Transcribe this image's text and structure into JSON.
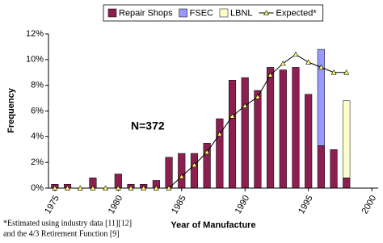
{
  "chart_data": {
    "type": "bar",
    "stacked": true,
    "x_label": "Year of Manufacture",
    "y_label": "Frequency",
    "annotation": "N=372",
    "footnote": [
      "*Estimated using industry data [11][12]",
      "and the 4/3 Retirement Function [9]"
    ],
    "x": [
      1975,
      1976,
      1977,
      1978,
      1979,
      1980,
      1981,
      1982,
      1983,
      1984,
      1985,
      1986,
      1987,
      1988,
      1989,
      1990,
      1991,
      1992,
      1993,
      1994,
      1995,
      1996,
      1997,
      1998
    ],
    "series": [
      {
        "name": "Repair Shops",
        "color": "#8b1f50",
        "type": "bar",
        "values": [
          0.3,
          0.3,
          0,
          0.8,
          0,
          1.1,
          0.3,
          0.3,
          0.6,
          2.4,
          2.7,
          2.7,
          3.5,
          5.4,
          8.4,
          8.6,
          7.6,
          9.4,
          9.2,
          9.4,
          7.3,
          3.3,
          3.0,
          0.8
        ]
      },
      {
        "name": "FSEC",
        "color": "#9999ff",
        "type": "bar",
        "values": [
          null,
          null,
          null,
          null,
          null,
          null,
          null,
          null,
          null,
          null,
          null,
          null,
          null,
          null,
          null,
          null,
          null,
          null,
          null,
          null,
          null,
          7.5,
          null,
          null
        ]
      },
      {
        "name": "LBNL",
        "color": "#ffffcc",
        "type": "bar",
        "values": [
          null,
          null,
          null,
          null,
          null,
          null,
          null,
          null,
          null,
          null,
          null,
          null,
          null,
          null,
          null,
          null,
          null,
          null,
          null,
          null,
          null,
          null,
          null,
          6.0
        ]
      },
      {
        "name": "Expected*",
        "color": "#000000",
        "marker_color": "#ffff66",
        "type": "line",
        "values": [
          0,
          0,
          0,
          0,
          0,
          0,
          0,
          0,
          0,
          0,
          0.9,
          1.8,
          2.8,
          4.2,
          5.6,
          6.4,
          7.1,
          8.8,
          9.7,
          10.4,
          9.8,
          9.4,
          9.0,
          9.0
        ]
      }
    ],
    "xlim": [
      1974.5,
      2000.5
    ],
    "xticks": [
      1975,
      1980,
      1985,
      1990,
      1995,
      2000
    ],
    "ylim": [
      0,
      12
    ],
    "yticks": [
      {
        "value": 0,
        "label": "0%"
      },
      {
        "value": 2,
        "label": "2%"
      },
      {
        "value": 4,
        "label": "4%"
      },
      {
        "value": 6,
        "label": "6%"
      },
      {
        "value": 8,
        "label": "8%"
      },
      {
        "value": 10,
        "label": "10%"
      },
      {
        "value": 12,
        "label": "12%"
      }
    ],
    "legend": "top"
  }
}
